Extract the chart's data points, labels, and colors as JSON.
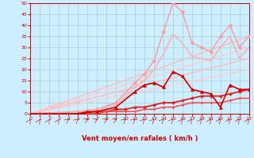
{
  "xlabel": "Vent moyen/en rafales ( km/h )",
  "xlim": [
    0,
    23
  ],
  "ylim": [
    0,
    50
  ],
  "xticks": [
    0,
    1,
    2,
    3,
    4,
    5,
    6,
    7,
    8,
    9,
    10,
    11,
    12,
    13,
    14,
    15,
    16,
    17,
    18,
    19,
    20,
    21,
    22,
    23
  ],
  "yticks": [
    0,
    5,
    10,
    15,
    20,
    25,
    30,
    35,
    40,
    45,
    50
  ],
  "bg_color": "#cceeff",
  "grid_color": "#aacccc",
  "lines": [
    {
      "x": [
        0,
        23
      ],
      "y": [
        0,
        35
      ],
      "color": "#ffbbbb",
      "lw": 1.0,
      "marker": null,
      "ms": 0,
      "zorder": 2
    },
    {
      "x": [
        0,
        23
      ],
      "y": [
        0,
        30
      ],
      "color": "#ffcccc",
      "lw": 1.0,
      "marker": null,
      "ms": 0,
      "zorder": 2
    },
    {
      "x": [
        0,
        23
      ],
      "y": [
        0,
        25
      ],
      "color": "#ffbbbb",
      "lw": 1.0,
      "marker": null,
      "ms": 0,
      "zorder": 2
    },
    {
      "x": [
        0,
        23
      ],
      "y": [
        0,
        20
      ],
      "color": "#ffcccc",
      "lw": 1.0,
      "marker": null,
      "ms": 0,
      "zorder": 2
    },
    {
      "x": [
        0,
        5,
        7,
        9,
        11,
        12,
        13,
        14,
        15,
        16,
        17,
        18,
        19,
        20,
        21,
        22,
        23
      ],
      "y": [
        0,
        1,
        2,
        5,
        14,
        18,
        24,
        37,
        50,
        46,
        32,
        30,
        28,
        35,
        40,
        30,
        35
      ],
      "color": "#ff9999",
      "lw": 1.0,
      "marker": "D",
      "ms": 2.5,
      "zorder": 3
    },
    {
      "x": [
        0,
        5,
        7,
        9,
        11,
        12,
        13,
        14,
        15,
        16,
        17,
        18,
        19,
        20,
        21,
        22,
        23
      ],
      "y": [
        0,
        1,
        2,
        4,
        12,
        15,
        20,
        27,
        36,
        32,
        26,
        25,
        24,
        30,
        35,
        25,
        30
      ],
      "color": "#ffaaaa",
      "lw": 1.0,
      "marker": null,
      "ms": 0,
      "zorder": 3
    },
    {
      "x": [
        0,
        5,
        7,
        9,
        11,
        12,
        13,
        14,
        15,
        16,
        17,
        18,
        19,
        20,
        21,
        22,
        23
      ],
      "y": [
        0,
        0,
        1,
        3,
        10,
        13,
        14,
        12,
        19,
        17,
        11,
        10,
        9,
        3,
        13,
        11,
        11
      ],
      "color": "#cc0000",
      "lw": 1.2,
      "marker": "^",
      "ms": 3.0,
      "zorder": 5
    },
    {
      "x": [
        0,
        1,
        2,
        3,
        4,
        5,
        6,
        7,
        8,
        9,
        10,
        11,
        12,
        13,
        14,
        15,
        16,
        17,
        18,
        19,
        20,
        21,
        22,
        23
      ],
      "y": [
        0,
        0,
        0,
        0,
        0,
        0,
        1,
        1,
        1,
        2,
        2,
        3,
        3,
        4,
        5,
        5,
        6,
        7,
        8,
        8,
        8,
        9,
        10,
        11
      ],
      "color": "#dd2222",
      "lw": 1.3,
      "marker": "D",
      "ms": 2.0,
      "zorder": 4
    },
    {
      "x": [
        0,
        1,
        2,
        3,
        4,
        5,
        6,
        7,
        8,
        9,
        10,
        11,
        12,
        13,
        14,
        15,
        16,
        17,
        18,
        19,
        20,
        21,
        22,
        23
      ],
      "y": [
        0,
        0,
        0,
        0,
        0,
        0,
        0,
        0,
        1,
        1,
        1,
        1,
        2,
        2,
        3,
        3,
        4,
        5,
        5,
        5,
        5,
        6,
        7,
        7
      ],
      "color": "#ff4444",
      "lw": 1.1,
      "marker": "D",
      "ms": 1.5,
      "zorder": 4
    }
  ],
  "arrows_x": [
    0,
    1,
    2,
    3,
    4,
    5,
    6,
    7,
    8,
    9,
    10,
    11,
    12,
    13,
    14,
    15,
    16,
    17,
    18,
    19,
    20,
    21,
    22,
    23
  ],
  "arrow_color": "#cc2222",
  "arrow_angles": [
    75,
    75,
    75,
    75,
    60,
    60,
    50,
    50,
    50,
    50,
    60,
    60,
    65,
    65,
    65,
    65,
    70,
    70,
    70,
    70,
    70,
    70,
    70,
    70
  ]
}
